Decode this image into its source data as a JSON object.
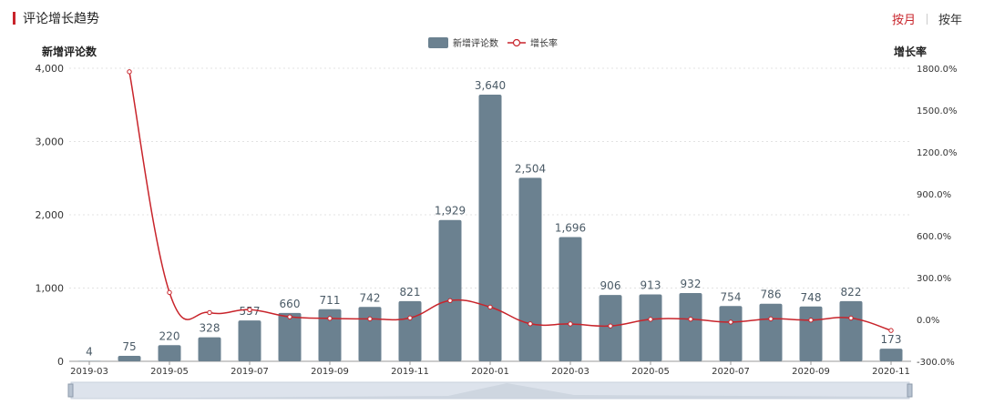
{
  "header": {
    "title": "评论增长趋势"
  },
  "toggle": {
    "month_label": "按月",
    "year_label": "按年",
    "active": "month"
  },
  "colors": {
    "bar": "#6b8190",
    "line": "#c8242b",
    "accent": "#c8242b"
  },
  "chart_data": {
    "type": "bar+line",
    "title": "评论增长趋势",
    "categories": [
      "2019-03",
      "2019-04",
      "2019-05",
      "2019-06",
      "2019-07",
      "2019-08",
      "2019-09",
      "2019-10",
      "2019-11",
      "2019-12",
      "2020-01",
      "2020-02",
      "2020-03",
      "2020-04",
      "2020-05",
      "2020-06",
      "2020-07",
      "2020-08",
      "2020-09",
      "2020-10",
      "2020-11"
    ],
    "x_tick_labels": [
      "2019-03",
      "2019-05",
      "2019-07",
      "2019-09",
      "2019-11",
      "2020-01",
      "2020-03",
      "2020-05",
      "2020-07",
      "2020-09",
      "2020-11"
    ],
    "legend": [
      "新增评论数",
      "增长率"
    ],
    "series": [
      {
        "name": "新增评论数",
        "type": "bar",
        "axis": "left",
        "values": [
          4,
          75,
          220,
          328,
          557,
          660,
          711,
          742,
          821,
          1929,
          3640,
          2504,
          1696,
          906,
          913,
          932,
          754,
          786,
          748,
          822,
          173
        ],
        "labels": [
          "4",
          "75",
          "220",
          "328",
          "557",
          "660",
          "711",
          "742",
          "821",
          "1,929",
          "3,640",
          "2,504",
          "1,696",
          "906",
          "913",
          "932",
          "754",
          "786",
          "748",
          "822",
          "173"
        ]
      },
      {
        "name": "增长率",
        "type": "line",
        "axis": "right",
        "values": [
          null,
          1775.0,
          193.3,
          49.1,
          69.8,
          18.5,
          7.7,
          4.4,
          10.6,
          135.0,
          88.7,
          -31.2,
          -32.3,
          -46.6,
          0.8,
          2.1,
          -19.1,
          4.2,
          -4.8,
          9.9,
          -79.0
        ]
      }
    ],
    "y_left": {
      "label": "新增评论数",
      "min": 0,
      "max": 4000,
      "ticks": [
        0,
        1000,
        2000,
        3000,
        4000
      ],
      "tick_labels": [
        "0",
        "1,000",
        "2,000",
        "3,000",
        "4,000"
      ]
    },
    "y_right": {
      "label": "增长率",
      "min": -300,
      "max": 1800,
      "ticks": [
        -300,
        0,
        300,
        600,
        900,
        1200,
        1500,
        1800
      ],
      "tick_labels": [
        "-300.0%",
        "0.0%",
        "300.0%",
        "600.0%",
        "900.0%",
        "1200.0%",
        "1500.0%",
        "1800.0%"
      ]
    }
  }
}
